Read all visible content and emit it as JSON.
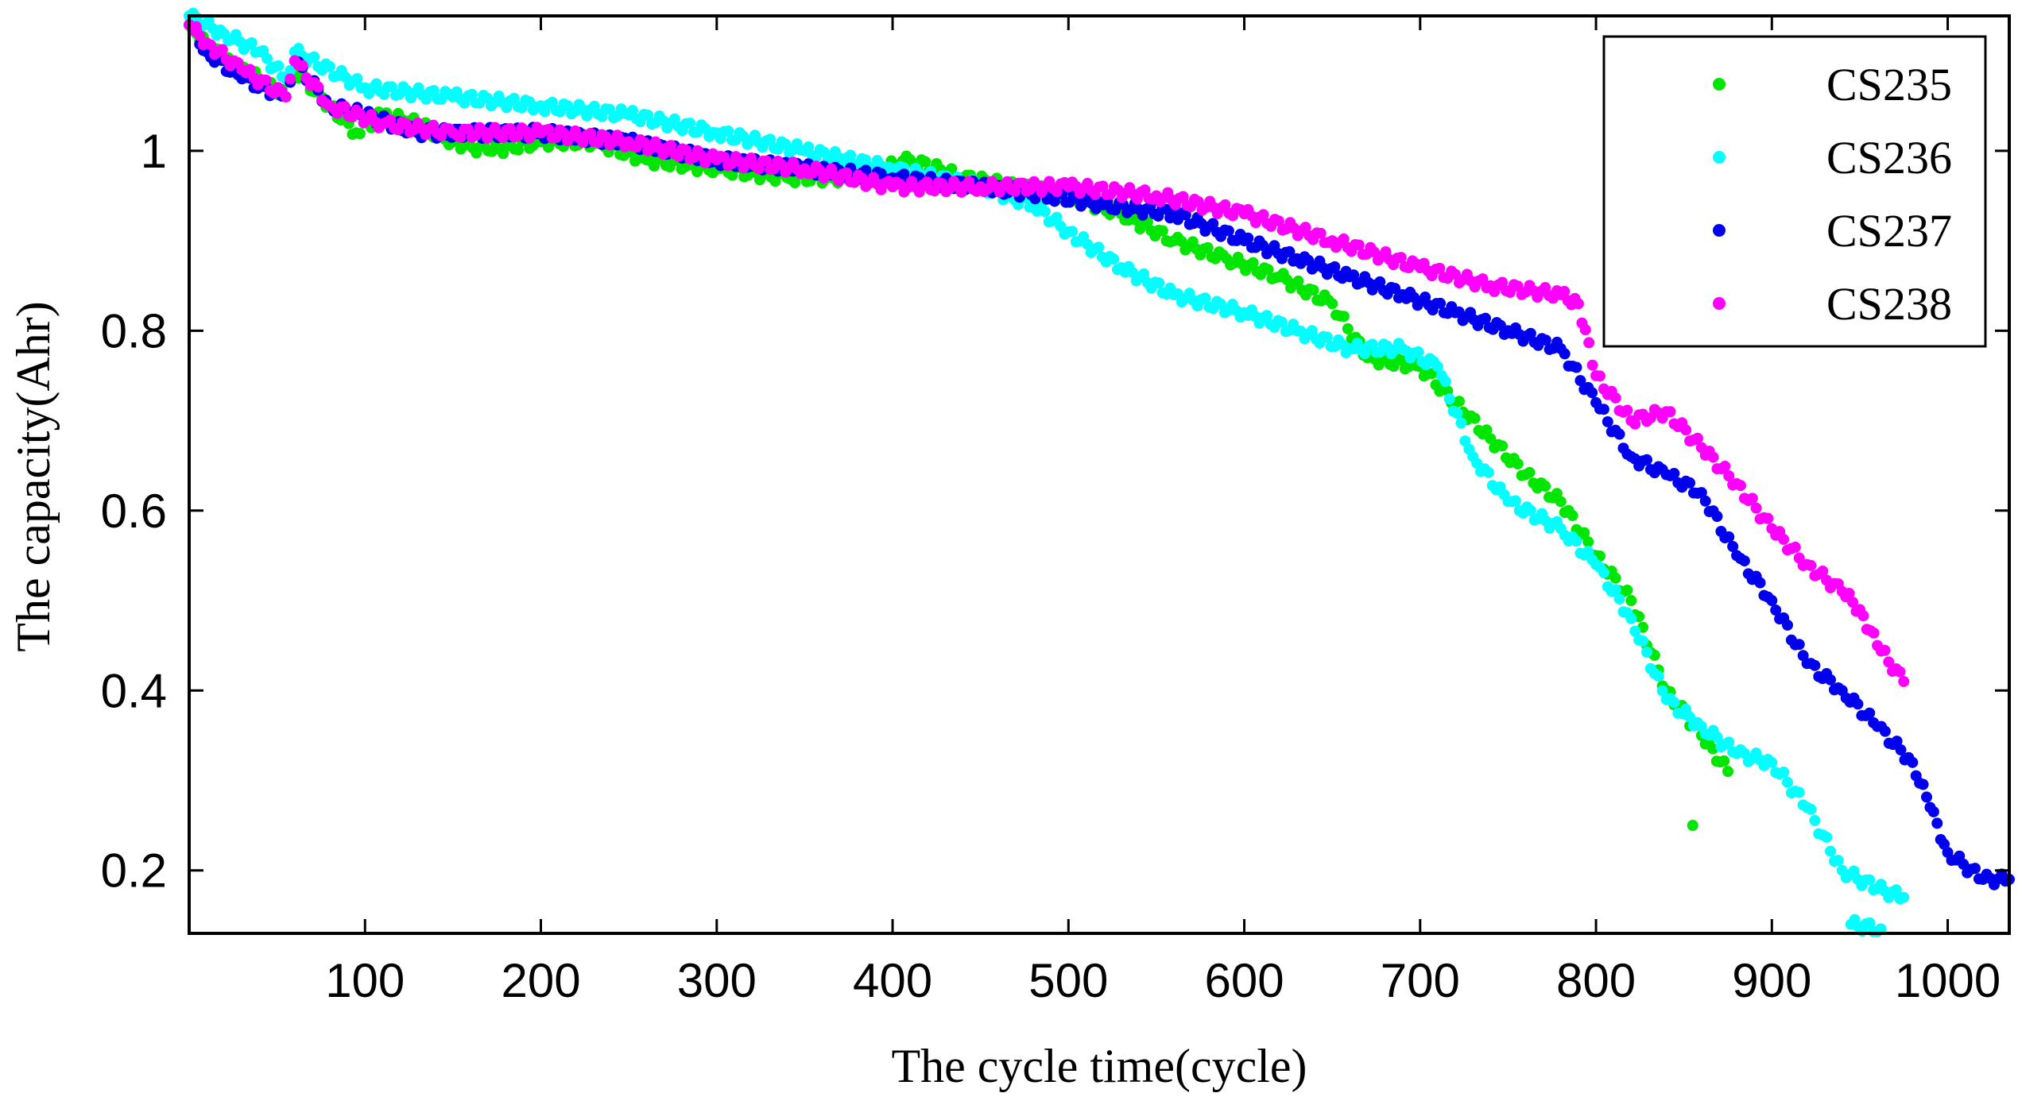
{
  "chart_data": {
    "type": "scatter",
    "title": "",
    "xlabel": "The cycle time(cycle)",
    "ylabel": "The capacity(Ahr)",
    "xlim": [
      0,
      1035
    ],
    "ylim": [
      0.13,
      1.15
    ],
    "x_ticks": [
      100,
      200,
      300,
      400,
      500,
      600,
      700,
      800,
      900,
      1000
    ],
    "y_ticks": [
      0.2,
      0.4,
      0.6,
      0.8,
      1
    ],
    "x_tick_labels": [
      "100",
      "200",
      "300",
      "400",
      "500",
      "600",
      "700",
      "800",
      "900",
      "1000"
    ],
    "y_tick_labels": [
      "0.2",
      "0.4",
      "0.6",
      "0.8",
      "1"
    ],
    "grid": false,
    "legend_position": "top-right",
    "series": [
      {
        "name": "CS235",
        "color": "#00e600",
        "points": [
          [
            0,
            1.14
          ],
          [
            10,
            1.12
          ],
          [
            20,
            1.1
          ],
          [
            40,
            1.08
          ],
          [
            55,
            1.06
          ],
          [
            60,
            1.09
          ],
          [
            80,
            1.05
          ],
          [
            95,
            1.02
          ],
          [
            110,
            1.04
          ],
          [
            130,
            1.03
          ],
          [
            150,
            1.01
          ],
          [
            170,
            1.0
          ],
          [
            200,
            1.01
          ],
          [
            230,
            1.01
          ],
          [
            260,
            0.99
          ],
          [
            300,
            0.98
          ],
          [
            340,
            0.97
          ],
          [
            380,
            0.97
          ],
          [
            410,
            0.99
          ],
          [
            440,
            0.97
          ],
          [
            470,
            0.96
          ],
          [
            500,
            0.95
          ],
          [
            530,
            0.93
          ],
          [
            560,
            0.9
          ],
          [
            590,
            0.88
          ],
          [
            620,
            0.86
          ],
          [
            650,
            0.83
          ],
          [
            670,
            0.77
          ],
          [
            700,
            0.76
          ],
          [
            720,
            0.72
          ],
          [
            740,
            0.68
          ],
          [
            760,
            0.64
          ],
          [
            780,
            0.61
          ],
          [
            800,
            0.55
          ],
          [
            820,
            0.5
          ],
          [
            840,
            0.4
          ],
          [
            860,
            0.35
          ],
          [
            875,
            0.31
          ],
          [
            855,
            0.25
          ]
        ]
      },
      {
        "name": "CS236",
        "color": "#00ffff",
        "points": [
          [
            0,
            1.15
          ],
          [
            20,
            1.13
          ],
          [
            40,
            1.11
          ],
          [
            55,
            1.08
          ],
          [
            60,
            1.11
          ],
          [
            100,
            1.07
          ],
          [
            150,
            1.06
          ],
          [
            200,
            1.05
          ],
          [
            250,
            1.04
          ],
          [
            300,
            1.02
          ],
          [
            350,
            1.0
          ],
          [
            400,
            0.98
          ],
          [
            450,
            0.96
          ],
          [
            480,
            0.94
          ],
          [
            500,
            0.91
          ],
          [
            530,
            0.87
          ],
          [
            560,
            0.84
          ],
          [
            600,
            0.82
          ],
          [
            630,
            0.8
          ],
          [
            660,
            0.78
          ],
          [
            690,
            0.78
          ],
          [
            710,
            0.76
          ],
          [
            730,
            0.66
          ],
          [
            750,
            0.61
          ],
          [
            780,
            0.58
          ],
          [
            800,
            0.54
          ],
          [
            820,
            0.48
          ],
          [
            840,
            0.39
          ],
          [
            860,
            0.36
          ],
          [
            880,
            0.33
          ],
          [
            900,
            0.32
          ],
          [
            920,
            0.27
          ],
          [
            940,
            0.2
          ],
          [
            960,
            0.18
          ],
          [
            975,
            0.17
          ],
          [
            945,
            0.14
          ],
          [
            962,
            0.135
          ]
        ]
      },
      {
        "name": "CS237",
        "color": "#0000ee",
        "points": [
          [
            0,
            1.14
          ],
          [
            10,
            1.11
          ],
          [
            30,
            1.08
          ],
          [
            55,
            1.06
          ],
          [
            60,
            1.1
          ],
          [
            80,
            1.05
          ],
          [
            100,
            1.04
          ],
          [
            130,
            1.02
          ],
          [
            160,
            1.02
          ],
          [
            200,
            1.02
          ],
          [
            250,
            1.01
          ],
          [
            300,
            0.99
          ],
          [
            350,
            0.98
          ],
          [
            400,
            0.97
          ],
          [
            450,
            0.96
          ],
          [
            490,
            0.95
          ],
          [
            520,
            0.94
          ],
          [
            560,
            0.93
          ],
          [
            600,
            0.9
          ],
          [
            630,
            0.88
          ],
          [
            660,
            0.86
          ],
          [
            690,
            0.84
          ],
          [
            720,
            0.82
          ],
          [
            750,
            0.8
          ],
          [
            780,
            0.78
          ],
          [
            800,
            0.72
          ],
          [
            820,
            0.66
          ],
          [
            840,
            0.64
          ],
          [
            860,
            0.62
          ],
          [
            880,
            0.55
          ],
          [
            900,
            0.5
          ],
          [
            920,
            0.43
          ],
          [
            940,
            0.4
          ],
          [
            960,
            0.36
          ],
          [
            980,
            0.32
          ],
          [
            990,
            0.27
          ],
          [
            1000,
            0.22
          ],
          [
            1020,
            0.19
          ],
          [
            1035,
            0.19
          ]
        ]
      },
      {
        "name": "CS238",
        "color": "#ff00ff",
        "points": [
          [
            0,
            1.14
          ],
          [
            10,
            1.12
          ],
          [
            30,
            1.09
          ],
          [
            55,
            1.06
          ],
          [
            60,
            1.1
          ],
          [
            80,
            1.05
          ],
          [
            110,
            1.03
          ],
          [
            150,
            1.02
          ],
          [
            200,
            1.02
          ],
          [
            250,
            1.01
          ],
          [
            300,
            0.99
          ],
          [
            350,
            0.98
          ],
          [
            400,
            0.96
          ],
          [
            450,
            0.96
          ],
          [
            500,
            0.96
          ],
          [
            550,
            0.95
          ],
          [
            600,
            0.93
          ],
          [
            650,
            0.9
          ],
          [
            700,
            0.87
          ],
          [
            740,
            0.85
          ],
          [
            780,
            0.84
          ],
          [
            790,
            0.83
          ],
          [
            800,
            0.75
          ],
          [
            820,
            0.7
          ],
          [
            840,
            0.71
          ],
          [
            860,
            0.67
          ],
          [
            880,
            0.63
          ],
          [
            900,
            0.58
          ],
          [
            920,
            0.54
          ],
          [
            940,
            0.51
          ],
          [
            950,
            0.49
          ],
          [
            960,
            0.45
          ],
          [
            975,
            0.41
          ]
        ]
      }
    ]
  }
}
